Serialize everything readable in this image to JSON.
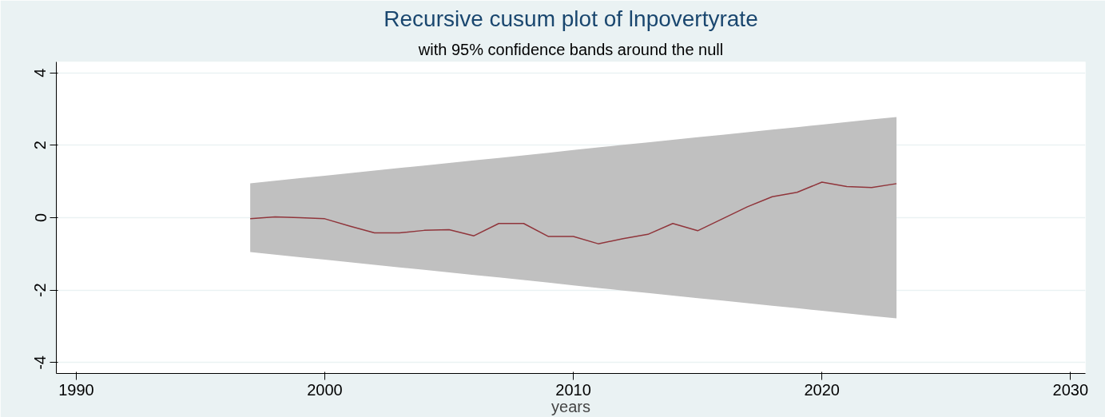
{
  "chart_data": {
    "type": "line",
    "title": "Recursive cusum plot of lnpovertyrate",
    "subtitle": "with 95% confidence bands around the null",
    "xlabel": "years",
    "x": [
      1997,
      1998,
      1999,
      2000,
      2001,
      2002,
      2003,
      2004,
      2005,
      2006,
      2007,
      2008,
      2009,
      2010,
      2011,
      2012,
      2013,
      2014,
      2015,
      2016,
      2017,
      2018,
      2019,
      2020,
      2021,
      2022,
      2023
    ],
    "series": [
      {
        "color": "#90353b",
        "values": [
          -0.03,
          0.02,
          0.0,
          -0.03,
          -0.23,
          -0.42,
          -0.42,
          -0.35,
          -0.33,
          -0.5,
          -0.16,
          -0.16,
          -0.52,
          -0.52,
          -0.72,
          -0.58,
          -0.46,
          -0.16,
          -0.36,
          -0.03,
          0.3,
          0.58,
          0.7,
          0.98,
          0.86,
          0.83,
          0.94
        ],
        "lower": [
          -0.95,
          -1.02,
          -1.09,
          -1.16,
          -1.23,
          -1.3,
          -1.37,
          -1.44,
          -1.51,
          -1.58,
          -1.65,
          -1.72,
          -1.79,
          -1.87,
          -1.94,
          -2.01,
          -2.08,
          -2.15,
          -2.22,
          -2.29,
          -2.36,
          -2.43,
          -2.5,
          -2.57,
          -2.64,
          -2.71,
          -2.78
        ],
        "upper": [
          0.95,
          1.02,
          1.09,
          1.16,
          1.23,
          1.3,
          1.37,
          1.44,
          1.51,
          1.58,
          1.65,
          1.72,
          1.79,
          1.87,
          1.94,
          2.01,
          2.08,
          2.15,
          2.22,
          2.29,
          2.36,
          2.43,
          2.5,
          2.57,
          2.64,
          2.71,
          2.78
        ]
      }
    ],
    "xlim": [
      1989.2,
      2030.6
    ],
    "ylim": [
      -4.3,
      4.3
    ],
    "xticks": [
      1990,
      2000,
      2010,
      2020,
      2030
    ],
    "yticks": [
      -4,
      -2,
      0,
      2,
      4
    ],
    "grid": "y"
  }
}
